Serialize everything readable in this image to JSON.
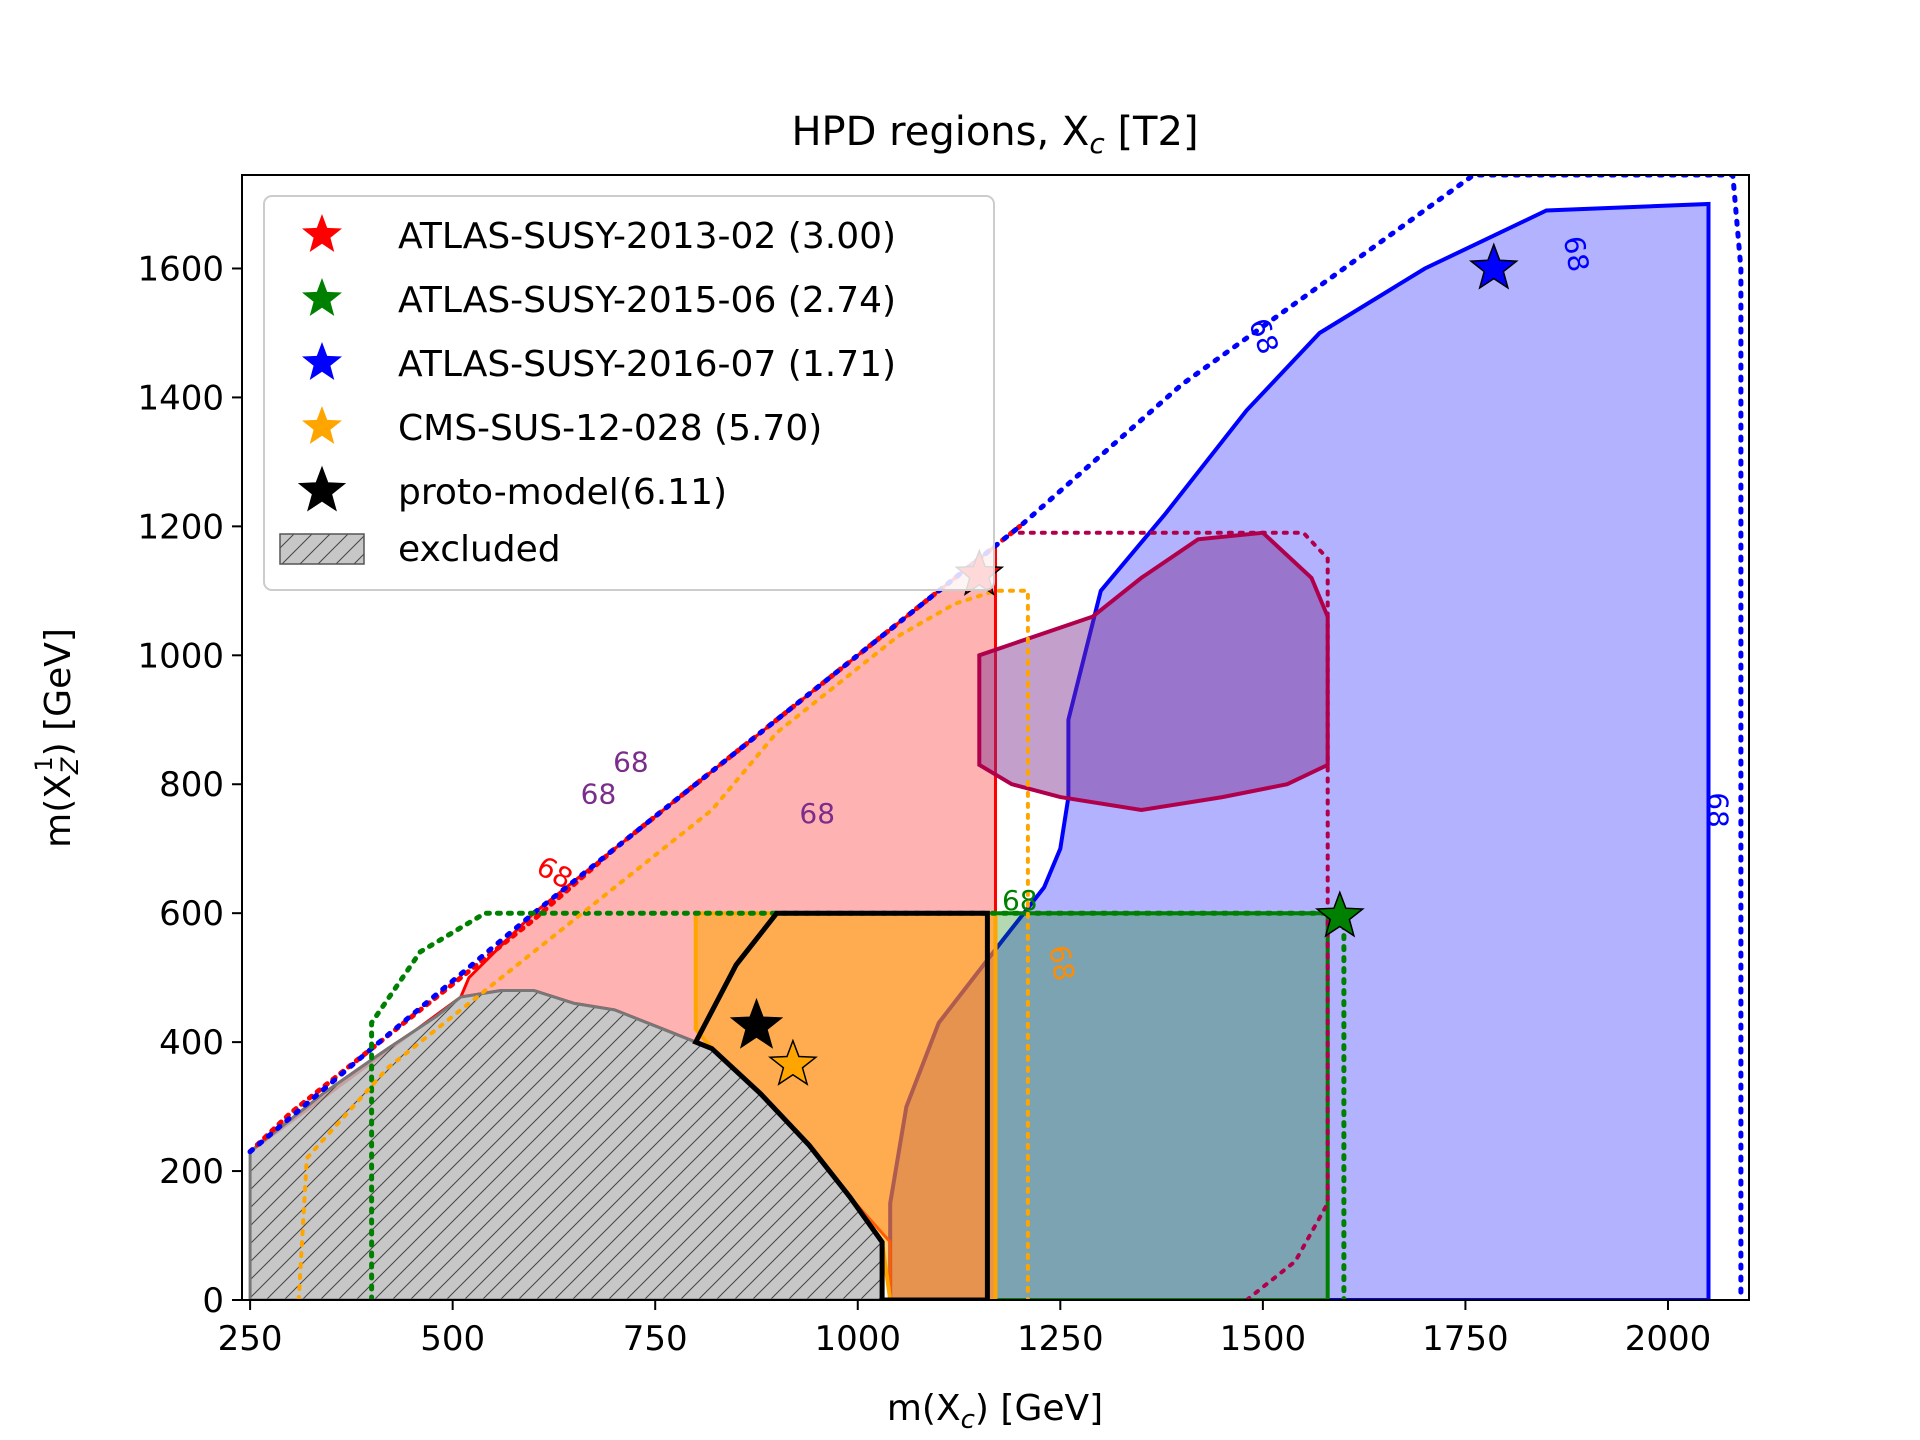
{
  "chart_data": {
    "type": "scatter",
    "title": "HPD regions, X",
    "title_sub": "c",
    "title_suffix": " [T2]",
    "xlabel": {
      "pre": "m(X",
      "sub": "c",
      "post": ") [GeV]"
    },
    "ylabel": {
      "pre": "m(X",
      "sub": "Z",
      "sup": "1",
      "post": ") [GeV]"
    },
    "xlim": [
      240,
      2100
    ],
    "ylim": [
      0,
      1745
    ],
    "x_ticks": [
      "250",
      "500",
      "750",
      "1000",
      "1250",
      "1500",
      "1750",
      "2000"
    ],
    "y_ticks": [
      "0",
      "200",
      "400",
      "600",
      "800",
      "1000",
      "1200",
      "1400",
      "1600"
    ],
    "legend_position": "upper-left",
    "contour_label": "68",
    "colors": {
      "red": "#ff0000",
      "green": "#008000",
      "blue": "#0000ff",
      "orange": "#ffa500",
      "purple": "#7b2d8b",
      "crimson": "#b0004c",
      "black": "#000000",
      "grey": "#bdbdbd"
    },
    "series": [
      {
        "name": "ATLAS-SUSY-2013-02 (3.00)",
        "color": "#ff0000",
        "marker": "star",
        "x": 1150,
        "y": 1125
      },
      {
        "name": "ATLAS-SUSY-2015-06 (2.74)",
        "color": "#008000",
        "marker": "star",
        "x": 1595,
        "y": 595
      },
      {
        "name": "ATLAS-SUSY-2016-07 (1.71)",
        "color": "#0000ff",
        "marker": "star",
        "x": 1785,
        "y": 1600
      },
      {
        "name": "CMS-SUS-12-028 (5.70)",
        "color": "#ffa500",
        "marker": "star",
        "x": 920,
        "y": 365
      },
      {
        "name": "proto-model(6.11)",
        "color": "#000000",
        "marker": "star",
        "x": 875,
        "y": 425
      }
    ],
    "excluded_label": "excluded",
    "regions": {
      "excluded": [
        [
          250,
          0
        ],
        [
          250,
          230
        ],
        [
          340,
          320
        ],
        [
          420,
          390
        ],
        [
          480,
          440
        ],
        [
          510,
          470
        ],
        [
          560,
          480
        ],
        [
          600,
          480
        ],
        [
          650,
          460
        ],
        [
          700,
          450
        ],
        [
          760,
          420
        ],
        [
          820,
          390
        ],
        [
          880,
          320
        ],
        [
          940,
          240
        ],
        [
          990,
          160
        ],
        [
          1030,
          90
        ],
        [
          1030,
          0
        ]
      ],
      "blue": [
        [
          1040,
          0
        ],
        [
          1040,
          150
        ],
        [
          1060,
          300
        ],
        [
          1100,
          430
        ],
        [
          1180,
          560
        ],
        [
          1230,
          640
        ],
        [
          1250,
          700
        ],
        [
          1260,
          780
        ],
        [
          1260,
          900
        ],
        [
          1300,
          1100
        ],
        [
          1380,
          1220
        ],
        [
          1480,
          1380
        ],
        [
          1570,
          1500
        ],
        [
          1700,
          1600
        ],
        [
          1850,
          1690
        ],
        [
          2050,
          1700
        ],
        [
          2050,
          0
        ]
      ],
      "red": [
        [
          250,
          230
        ],
        [
          340,
          320
        ],
        [
          420,
          390
        ],
        [
          480,
          440
        ],
        [
          510,
          470
        ],
        [
          520,
          500
        ],
        [
          600,
          600
        ],
        [
          700,
          700
        ],
        [
          800,
          800
        ],
        [
          900,
          900
        ],
        [
          1000,
          1000
        ],
        [
          1080,
          1080
        ],
        [
          1150,
          1150
        ],
        [
          1170,
          1170
        ],
        [
          1170,
          0
        ],
        [
          1040,
          0
        ],
        [
          1040,
          90
        ],
        [
          990,
          160
        ],
        [
          940,
          240
        ],
        [
          880,
          320
        ],
        [
          820,
          390
        ],
        [
          760,
          420
        ],
        [
          700,
          450
        ],
        [
          650,
          460
        ],
        [
          600,
          480
        ],
        [
          560,
          480
        ],
        [
          510,
          470
        ]
      ],
      "green": [
        [
          1170,
          600
        ],
        [
          1580,
          600
        ],
        [
          1580,
          0
        ],
        [
          1170,
          0
        ]
      ],
      "orange": [
        [
          800,
          600
        ],
        [
          1170,
          600
        ],
        [
          1170,
          0
        ],
        [
          1040,
          0
        ],
        [
          1030,
          90
        ],
        [
          990,
          160
        ],
        [
          940,
          240
        ],
        [
          880,
          320
        ],
        [
          820,
          390
        ],
        [
          800,
          420
        ]
      ],
      "purple": [
        [
          1150,
          1000
        ],
        [
          1290,
          1060
        ],
        [
          1350,
          1120
        ],
        [
          1420,
          1180
        ],
        [
          1500,
          1190
        ],
        [
          1560,
          1120
        ],
        [
          1580,
          1060
        ],
        [
          1580,
          830
        ],
        [
          1530,
          800
        ],
        [
          1450,
          780
        ],
        [
          1350,
          760
        ],
        [
          1250,
          780
        ],
        [
          1190,
          800
        ],
        [
          1150,
          830
        ]
      ]
    },
    "contours": {
      "red_dotted": [
        [
          250,
          230
        ],
        [
          300,
          290
        ],
        [
          400,
          390
        ],
        [
          500,
          490
        ],
        [
          600,
          590
        ],
        [
          700,
          700
        ],
        [
          800,
          800
        ],
        [
          900,
          900
        ],
        [
          1000,
          1000
        ],
        [
          1100,
          1100
        ],
        [
          1200,
          1200
        ]
      ],
      "blue_dotted": [
        [
          250,
          230
        ],
        [
          400,
          390
        ],
        [
          600,
          600
        ],
        [
          800,
          800
        ],
        [
          1000,
          1000
        ],
        [
          1200,
          1200
        ],
        [
          1400,
          1420
        ],
        [
          1600,
          1600
        ],
        [
          1760,
          1745
        ],
        [
          2080,
          1745
        ],
        [
          2090,
          1600
        ],
        [
          2090,
          0
        ]
      ],
      "crimson_dotted": [
        [
          1200,
          1190
        ],
        [
          1550,
          1190
        ],
        [
          1580,
          1150
        ],
        [
          1580,
          150
        ],
        [
          1540,
          60
        ],
        [
          1480,
          0
        ]
      ],
      "green_dotted": [
        [
          400,
          0
        ],
        [
          400,
          430
        ],
        [
          460,
          540
        ],
        [
          540,
          600
        ],
        [
          1600,
          600
        ],
        [
          1600,
          0
        ]
      ],
      "orange_dotted": [
        [
          310,
          0
        ],
        [
          320,
          220
        ],
        [
          420,
          360
        ],
        [
          560,
          500
        ],
        [
          700,
          640
        ],
        [
          820,
          760
        ],
        [
          900,
          880
        ],
        [
          980,
          960
        ],
        [
          1050,
          1030
        ],
        [
          1120,
          1080
        ],
        [
          1170,
          1100
        ],
        [
          1210,
          1100
        ],
        [
          1210,
          0
        ]
      ],
      "black_solid": [
        [
          800,
          400
        ],
        [
          850,
          520
        ],
        [
          900,
          600
        ],
        [
          1160,
          600
        ],
        [
          1160,
          0
        ],
        [
          1030,
          0
        ],
        [
          1030,
          90
        ],
        [
          990,
          160
        ],
        [
          940,
          240
        ],
        [
          880,
          320
        ],
        [
          820,
          390
        ]
      ]
    },
    "contour_labels": [
      {
        "text": "68",
        "color": "#0000ff",
        "x": 2050,
        "y": 760,
        "rotate": 90
      },
      {
        "text": "68",
        "color": "#0000ff",
        "x": 1875,
        "y": 1620,
        "rotate": 80
      },
      {
        "text": "68",
        "color": "#0000ff",
        "x": 1490,
        "y": 1490,
        "rotate": 70
      },
      {
        "text": "68",
        "color": "#7b2d8b",
        "x": 720,
        "y": 820,
        "rotate": 0
      },
      {
        "text": "68",
        "color": "#7b2d8b",
        "x": 680,
        "y": 770,
        "rotate": 0
      },
      {
        "text": "68",
        "color": "#7b2d8b",
        "x": 950,
        "y": 740,
        "rotate": 0
      },
      {
        "text": "68",
        "color": "#ff0000",
        "x": 620,
        "y": 650,
        "rotate": 30
      },
      {
        "text": "68",
        "color": "#008000",
        "x": 1200,
        "y": 605,
        "rotate": 0
      },
      {
        "text": "68",
        "color": "#ff8c00",
        "x": 1240,
        "y": 520,
        "rotate": 80
      }
    ]
  }
}
